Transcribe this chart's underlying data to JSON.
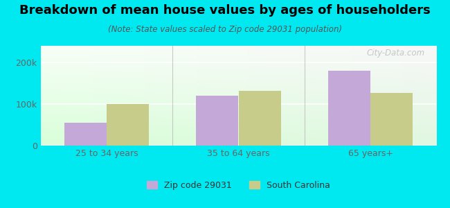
{
  "title": "Breakdown of mean house values by ages of householders",
  "subtitle": "(Note: State values scaled to Zip code 29031 population)",
  "categories": [
    "25 to 34 years",
    "35 to 64 years",
    "65 years+"
  ],
  "zip_values": [
    55000,
    120000,
    180000
  ],
  "state_values": [
    100000,
    132000,
    127000
  ],
  "zip_color": "#c4a8d8",
  "state_color": "#c8cc8a",
  "background_outer": "#00e8f0",
  "ylim": [
    0,
    240000
  ],
  "yticks": [
    0,
    100000,
    200000
  ],
  "ytick_labels": [
    "0",
    "100k",
    "200k"
  ],
  "bar_width": 0.32,
  "legend_zip_label": "Zip code 29031",
  "legend_state_label": "South Carolina",
  "watermark": "City-Data.com",
  "title_fontsize": 13,
  "subtitle_fontsize": 8.5,
  "tick_fontsize": 9
}
